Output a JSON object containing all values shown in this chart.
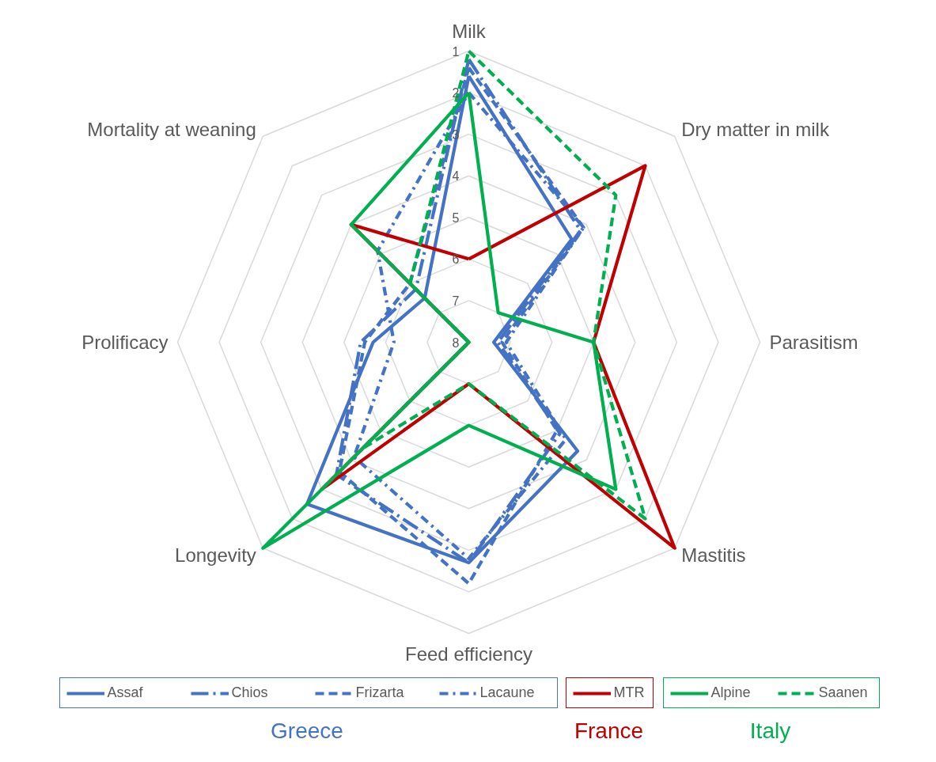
{
  "chart_data": {
    "type": "radar",
    "categories": [
      "Milk",
      "Dry matter in milk",
      "Parasitism",
      "Mastitis",
      "Feed efficiency",
      "Longevity",
      "Prolificacy",
      "Mortality at weaning"
    ],
    "ylim": [
      8,
      1
    ],
    "yticks": [
      1,
      2,
      3,
      4,
      5,
      6,
      7,
      8
    ],
    "grid": true,
    "legend": "bottom",
    "annotations": [
      "Greece",
      "France",
      "Italy"
    ],
    "series": [
      {
        "name": "Assaf",
        "color": "#4472c4",
        "line_style": "solid",
        "values": [
          1.6,
          4.5,
          7.4,
          4.3,
          2.7,
          2.5,
          5.7,
          6.5
        ]
      },
      {
        "name": "Chios",
        "color": "#4472c4",
        "line_style": "longdashdot",
        "values": [
          1.2,
          4.2,
          7.3,
          4.9,
          2.7,
          3.5,
          5.4,
          6.2
        ]
      },
      {
        "name": "Frizarta",
        "color": "#4472c4",
        "line_style": "dashed",
        "values": [
          1.4,
          4.1,
          7.2,
          5.0,
          2.2,
          3.6,
          5.5,
          6.0
        ]
      },
      {
        "name": "Lacaune",
        "color": "#4472c4",
        "line_style": "dashdot",
        "values": [
          2.0,
          4.1,
          7.1,
          4.7,
          2.8,
          4.1,
          6.2,
          4.9
        ]
      },
      {
        "name": "MTR",
        "color": "#c00000",
        "line_style": "solid",
        "values": [
          6,
          2,
          5,
          1,
          7,
          3,
          8,
          4
        ]
      },
      {
        "name": "Alpine",
        "color": "#00b050",
        "line_style": "solid",
        "values": [
          2,
          7,
          5,
          3,
          6,
          1,
          8,
          4
        ]
      },
      {
        "name": "Saanen",
        "color": "#00b050",
        "line_style": "dashed",
        "values": [
          1,
          3,
          5,
          2,
          7,
          4.4,
          8,
          6
        ]
      }
    ]
  }
}
